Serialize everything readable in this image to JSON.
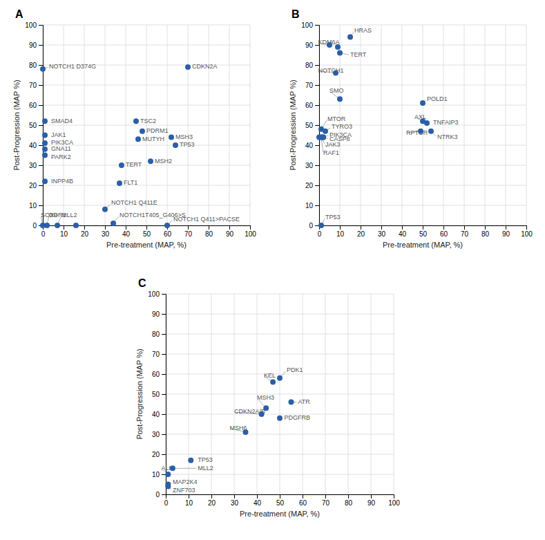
{
  "chart_data": [
    {
      "type": "scatter",
      "title": "A",
      "xlabel": "Pre-treatment (MAP, %)",
      "ylabel": "Post-Progression (MAP %)",
      "x": [
        0,
        70,
        1,
        1,
        1,
        1,
        1,
        1,
        45,
        48,
        46,
        62,
        52,
        64,
        38,
        37,
        0,
        2,
        7,
        16,
        30,
        34,
        60
      ],
      "values": [
        78,
        79,
        52,
        45,
        41,
        38,
        35,
        22,
        52,
        47,
        43,
        44,
        32,
        40,
        30,
        21,
        0,
        0,
        0,
        0,
        8,
        1,
        0
      ],
      "color": "#2b5fa5",
      "annotations": [
        {
          "text": "NOTCH1  D374G",
          "x": 0,
          "y": 78,
          "text_x": 3,
          "text_y": 79,
          "arrow": true
        },
        {
          "text": "CDKN2A",
          "x": 70,
          "y": 79,
          "text_x": 72,
          "text_y": 79,
          "arrow": false
        },
        {
          "text": "SMAD4",
          "x": 1,
          "y": 52,
          "text_x": 4,
          "text_y": 52,
          "arrow": false
        },
        {
          "text": "JAK1",
          "x": 1,
          "y": 45,
          "text_x": 4,
          "text_y": 45,
          "arrow": false
        },
        {
          "text": "PIK3CA",
          "x": 1,
          "y": 41,
          "text_x": 4,
          "text_y": 41,
          "arrow": false
        },
        {
          "text": "GNA11",
          "x": 1,
          "y": 38,
          "text_x": 4,
          "text_y": 38,
          "arrow": false
        },
        {
          "text": "PARK2",
          "x": 1,
          "y": 35,
          "text_x": 4,
          "text_y": 34,
          "arrow": false
        },
        {
          "text": "INPP4B",
          "x": 1,
          "y": 22,
          "text_x": 4,
          "text_y": 22,
          "arrow": false
        },
        {
          "text": "TSC2",
          "x": 45,
          "y": 52,
          "text_x": 47,
          "text_y": 52,
          "arrow": false
        },
        {
          "text": "PDRM1",
          "x": 48,
          "y": 47,
          "text_x": 50,
          "text_y": 47,
          "arrow": false
        },
        {
          "text": "MUTYH",
          "x": 46,
          "y": 43,
          "text_x": 48,
          "text_y": 43,
          "arrow": false
        },
        {
          "text": "MSH3",
          "x": 62,
          "y": 44,
          "text_x": 64,
          "text_y": 44,
          "arrow": false
        },
        {
          "text": "MSH2",
          "x": 52,
          "y": 32,
          "text_x": 54,
          "text_y": 32,
          "arrow": false
        },
        {
          "text": "TP53",
          "x": 64,
          "y": 40,
          "text_x": 66,
          "text_y": 40,
          "arrow": false
        },
        {
          "text": "TERT",
          "x": 38,
          "y": 30,
          "text_x": 40,
          "text_y": 30,
          "arrow": false
        },
        {
          "text": "FLT1",
          "x": 37,
          "y": 21,
          "text_x": 39,
          "text_y": 21,
          "arrow": false
        },
        {
          "text": "SOX9",
          "x": 0,
          "y": 0,
          "text_x": -1,
          "text_y": 5,
          "arrow": true
        },
        {
          "text": "DDR1",
          "x": 2,
          "y": 0,
          "text_x": 3,
          "text_y": 5,
          "arrow": true
        },
        {
          "text": "MLL2",
          "x": 7,
          "y": 0,
          "text_x": 9,
          "text_y": 5,
          "arrow": true
        },
        {
          "text": "NOTCH1  Q411E",
          "x": 30,
          "y": 8,
          "text_x": 33,
          "text_y": 11,
          "arrow": true
        },
        {
          "text": "NOTCH1T405_G406>S",
          "x": 34,
          "y": 1,
          "text_x": 37,
          "text_y": 5,
          "arrow": true
        },
        {
          "text": "NOTCH1  Q411>PACSE",
          "x": 60,
          "y": 0,
          "text_x": 63,
          "text_y": 3,
          "arrow": true
        }
      ],
      "xlim": [
        0,
        100
      ],
      "ylim": [
        0,
        100
      ],
      "xticks": [
        0,
        10,
        20,
        30,
        40,
        50,
        60,
        70,
        80,
        90,
        100
      ],
      "yticks": [
        0,
        10,
        20,
        30,
        40,
        50,
        60,
        70,
        80,
        90,
        100
      ],
      "grid": true
    },
    {
      "type": "scatter",
      "title": "B",
      "xlabel": "Pre-treatment (MAP, %)",
      "ylabel": "Post-Progression (MAP %)",
      "x": [
        5,
        15,
        9,
        10,
        8,
        10,
        50,
        1,
        3,
        2,
        2,
        1,
        1,
        0,
        50,
        52,
        49,
        54,
        1
      ],
      "values": [
        90,
        94,
        89,
        86,
        76,
        63,
        61,
        48,
        47,
        44,
        44,
        44,
        44,
        44,
        52,
        51,
        47,
        47,
        0
      ],
      "color": "#2b5fa5",
      "annotations": [
        {
          "text": "KDM6A",
          "x": 5,
          "y": 90,
          "text_x": -0.5,
          "text_y": 91,
          "arrow": true
        },
        {
          "text": "HRAS",
          "x": 15,
          "y": 94,
          "text_x": 17,
          "text_y": 97,
          "arrow": true
        },
        {
          "text": "TERT",
          "x": 10,
          "y": 86,
          "text_x": 15,
          "text_y": 85,
          "arrow": true
        },
        {
          "text": "NOTCH1",
          "x": 8,
          "y": 76,
          "text_x": -0.5,
          "text_y": 77,
          "arrow": true
        },
        {
          "text": "SMO",
          "x": 10,
          "y": 63,
          "text_x": 5,
          "text_y": 67,
          "arrow": true
        },
        {
          "text": "POLD1",
          "x": 50,
          "y": 61,
          "text_x": 52,
          "text_y": 63,
          "arrow": true
        },
        {
          "text": "MTOR",
          "x": 1,
          "y": 48,
          "text_x": 4,
          "text_y": 53,
          "arrow": true
        },
        {
          "text": "TYRO3",
          "x": 3,
          "y": 47,
          "text_x": 6,
          "text_y": 49,
          "arrow": true
        },
        {
          "text": "PIK3CA",
          "x": 2,
          "y": 44,
          "text_x": 5,
          "text_y": 45,
          "arrow": true
        },
        {
          "text": "CASP8",
          "x": 2,
          "y": 44,
          "text_x": 5,
          "text_y": 43,
          "arrow": true
        },
        {
          "text": "JAK3",
          "x": 1,
          "y": 44,
          "text_x": 3,
          "text_y": 40,
          "arrow": true
        },
        {
          "text": "RAF1",
          "x": 1,
          "y": 44,
          "text_x": 2,
          "text_y": 36,
          "arrow": true
        },
        {
          "text": "AXL",
          "x": 50,
          "y": 52,
          "text_x": 46,
          "text_y": 54,
          "arrow": true
        },
        {
          "text": "TNFAIP3",
          "x": 52,
          "y": 51,
          "text_x": 55,
          "text_y": 51,
          "arrow": false
        },
        {
          "text": "RPTOR",
          "x": 49,
          "y": 47,
          "text_x": 42,
          "text_y": 46,
          "arrow": true
        },
        {
          "text": "NTRK3",
          "x": 54,
          "y": 47,
          "text_x": 57,
          "text_y": 44,
          "arrow": true
        },
        {
          "text": "TP53",
          "x": 1,
          "y": 0,
          "text_x": 3,
          "text_y": 4,
          "arrow": true
        }
      ],
      "xlim": [
        0,
        100
      ],
      "ylim": [
        0,
        100
      ],
      "xticks": [
        0,
        10,
        20,
        30,
        40,
        50,
        60,
        70,
        80,
        90,
        100
      ],
      "yticks": [
        0,
        10,
        20,
        30,
        40,
        50,
        60,
        70,
        80,
        90,
        100
      ],
      "grid": true
    },
    {
      "type": "scatter",
      "title": "C",
      "xlabel": "Pre-treatment (MAP, %)",
      "ylabel": "Post-Progression (MAP %)",
      "x": [
        1,
        11,
        3,
        1,
        1,
        35,
        44,
        42,
        50,
        47,
        50,
        55
      ],
      "values": [
        10,
        17,
        13,
        5,
        4,
        31,
        43,
        40,
        38,
        56,
        58,
        46
      ],
      "color": "#2b5fa5",
      "annotations": [
        {
          "text": "ALK",
          "x": 1,
          "y": 10,
          "text_x": -2,
          "text_y": 13,
          "arrow": true
        },
        {
          "text": "TP53",
          "x": 11,
          "y": 17,
          "text_x": 14,
          "text_y": 17,
          "arrow": false
        },
        {
          "text": "MLL2",
          "x": 3,
          "y": 13,
          "text_x": 14,
          "text_y": 13,
          "arrow": true
        },
        {
          "text": "MAP2K4",
          "x": 1,
          "y": 5,
          "text_x": 3,
          "text_y": 6,
          "arrow": true
        },
        {
          "text": "ZNF703",
          "x": 1,
          "y": 4,
          "text_x": 3,
          "text_y": 2,
          "arrow": true
        },
        {
          "text": "MSH6",
          "x": 35,
          "y": 31,
          "text_x": 28,
          "text_y": 33,
          "arrow": true
        },
        {
          "text": "MSH3",
          "x": 44,
          "y": 43,
          "text_x": 40,
          "text_y": 48,
          "arrow": true
        },
        {
          "text": "CDKN2A/B",
          "x": 42,
          "y": 40,
          "text_x": 30,
          "text_y": 41,
          "arrow": true
        },
        {
          "text": "PDGFRB",
          "x": 50,
          "y": 38,
          "text_x": 52,
          "text_y": 38,
          "arrow": false
        },
        {
          "text": "KEL",
          "x": 47,
          "y": 56,
          "text_x": 43,
          "text_y": 59,
          "arrow": true
        },
        {
          "text": "PDK1",
          "x": 50,
          "y": 58,
          "text_x": 53,
          "text_y": 62,
          "arrow": true
        },
        {
          "text": "ATR",
          "x": 55,
          "y": 46,
          "text_x": 58,
          "text_y": 46,
          "arrow": true
        }
      ],
      "xlim": [
        0,
        100
      ],
      "ylim": [
        0,
        100
      ],
      "xticks": [
        0,
        10,
        20,
        30,
        40,
        50,
        60,
        70,
        80,
        90,
        100
      ],
      "yticks": [
        0,
        10,
        20,
        30,
        40,
        50,
        60,
        70,
        80,
        90,
        100
      ],
      "grid": true
    }
  ]
}
